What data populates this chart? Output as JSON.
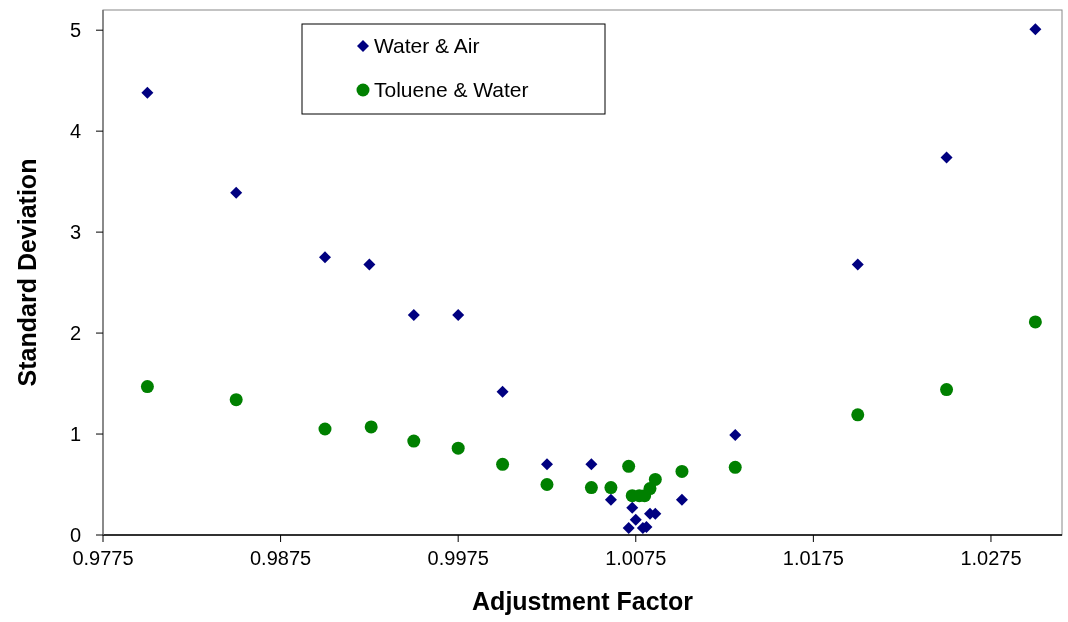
{
  "chart_data": {
    "type": "scatter",
    "xlabel": "Adjustment Factor",
    "ylabel": "Standard Deviation",
    "xlim": [
      0.9775,
      1.0315
    ],
    "xticks": [
      0.9775,
      0.9875,
      0.9975,
      1.0075,
      1.0175,
      1.0275
    ],
    "ylim": [
      0,
      5.2
    ],
    "yticks": [
      0,
      1,
      2,
      3,
      4,
      5
    ],
    "grid": false,
    "legend": "top left",
    "series": [
      {
        "name": "Water & Air",
        "color": "#000080",
        "marker": "diamond",
        "x": [
          0.98,
          0.985,
          0.99,
          0.9925,
          0.995,
          0.9975,
          1.0,
          1.0025,
          1.005,
          1.0061,
          1.0073,
          1.0071,
          1.0075,
          1.0079,
          1.0081,
          1.0083,
          1.0086,
          1.0101,
          1.0131,
          1.02,
          1.025,
          1.03
        ],
        "values": [
          4.38,
          3.39,
          2.75,
          2.68,
          2.18,
          2.18,
          1.42,
          0.7,
          0.7,
          0.35,
          0.27,
          0.07,
          0.15,
          0.07,
          0.08,
          0.21,
          0.21,
          0.35,
          0.99,
          2.68,
          3.74,
          5.01
        ]
      },
      {
        "name": "Toluene & Water",
        "color": "#008000",
        "marker": "circle",
        "x": [
          0.98,
          0.985,
          0.99,
          0.9926,
          0.995,
          0.9975,
          1.0,
          1.0025,
          1.005,
          1.0061,
          1.0071,
          1.0073,
          1.0077,
          1.008,
          1.0083,
          1.0086,
          1.0101,
          1.0131,
          1.02,
          1.025,
          1.03
        ],
        "values": [
          1.47,
          1.34,
          1.05,
          1.07,
          0.93,
          0.86,
          0.7,
          0.5,
          0.47,
          0.47,
          0.68,
          0.39,
          0.39,
          0.39,
          0.46,
          0.55,
          0.63,
          0.67,
          1.19,
          1.44,
          2.11
        ]
      }
    ]
  }
}
